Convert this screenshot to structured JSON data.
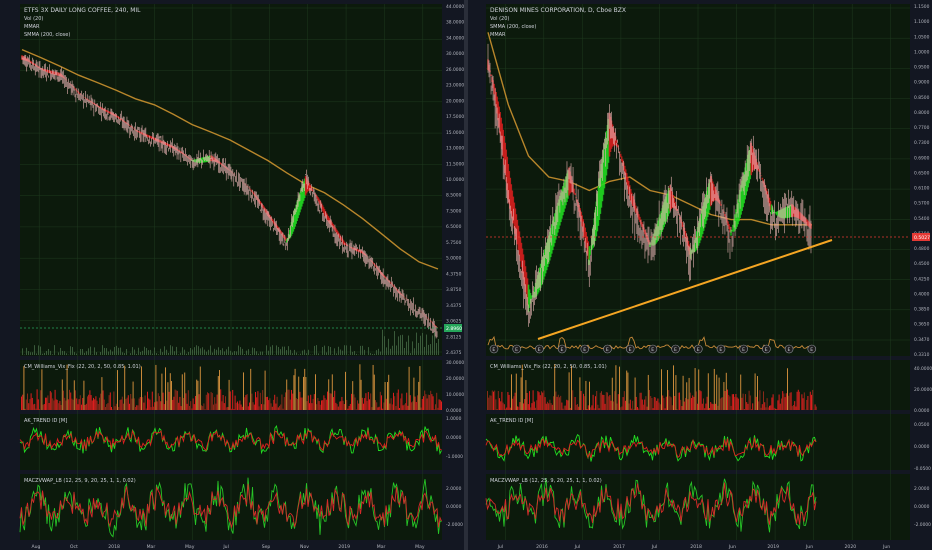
{
  "colors": {
    "bg": "#131722",
    "panel_bg": "#0c1a0c",
    "grid": "#1f3a1f",
    "divider": "#3a3f4b",
    "axis_text": "#b2b5be",
    "legend_text": "#d1d4dc",
    "up": "#22dd22",
    "down": "#dd1f1f",
    "smma": "#b8862b",
    "trendline": "#f5a623",
    "vol_orange": "#c98a3a",
    "macd_green": "#27c427",
    "macd_red": "#d42a2a",
    "last_price_green": "#26a65b",
    "last_price_red": "#e53935"
  },
  "left": {
    "legend": [
      "ETFS 3X DAILY LONG COFFEE, 240, MIL",
      "Vol (20)",
      "MMAR",
      "SMMA (200, close)"
    ],
    "price_ticks": [
      "44.0000",
      "38.0000",
      "34.0000",
      "30.0000",
      "26.0000",
      "23.0000",
      "20.0000",
      "17.5000",
      "15.0000",
      "13.0000",
      "11.5000",
      "10.0000",
      "8.5000",
      "7.5000",
      "6.5000",
      "5.7500",
      "5.0000",
      "4.3750",
      "3.8750",
      "3.4375",
      "3.0625",
      "2.8125",
      "2.4375"
    ],
    "last_price": "2.8960",
    "x_ticks": [
      "Aug",
      "Oct",
      "2018",
      "Mar",
      "May",
      "Jul",
      "Sep",
      "Nov",
      "2019",
      "Mar",
      "May"
    ],
    "indicators": [
      {
        "label": "CM_Williams_Vix_Fix (22, 20, 2, 50, 0.85, 1.01)",
        "ticks": [
          "30.0000",
          "20.0000",
          "10.0000",
          "0.0000"
        ]
      },
      {
        "label": "AK_TREND ID [M]",
        "ticks": [
          "1.0000",
          "0.0000",
          "-1.0000"
        ]
      },
      {
        "label": "MACZVWAP_LB (12, 25, 9, 20, 25, 1, 1, 0.02)",
        "ticks": [
          "2.0000",
          "0.0000",
          "-2.0000"
        ]
      }
    ]
  },
  "right": {
    "legend": [
      "DENISON MINES CORPORATION, D, Cboe BZX",
      "Vol (20)",
      "SMMA (200, close)",
      "MMAR"
    ],
    "price_ticks": [
      "1.1500",
      "1.1000",
      "1.0500",
      "1.0000",
      "0.9500",
      "0.9000",
      "0.8500",
      "0.8000",
      "0.7700",
      "0.7300",
      "0.6900",
      "0.6500",
      "0.6100",
      "0.5700",
      "0.5400",
      "0.5100",
      "0.4800",
      "0.4500",
      "0.4250",
      "0.4000",
      "0.3850",
      "0.3650",
      "0.3470",
      "0.3310"
    ],
    "last_price": "0.5027",
    "x_ticks": [
      "Jul",
      "2016",
      "Jul",
      "2017",
      "Jul",
      "2018",
      "Jun",
      "2019",
      "Jun",
      "2020",
      "Jun"
    ],
    "event_markers": [
      "E",
      "E",
      "E",
      "E",
      "E",
      "E",
      "E",
      "E",
      "E",
      "E",
      "E",
      "E",
      "E",
      "E",
      "E"
    ],
    "indicators": [
      {
        "label": "CM_Williams_Vix_Fix (22, 20, 2, 50, 0.85, 1.01)",
        "ticks": [
          "40.0000",
          "20.0000",
          "0.0000"
        ]
      },
      {
        "label": "AK_TREND ID [M]",
        "ticks": [
          "0.0500",
          "0.0000",
          "-0.0500"
        ]
      },
      {
        "label": "MACZVWAP_LB (12, 25, 9, 20, 25, 1, 1, 0.02)",
        "ticks": [
          "2.0000",
          "0.0000",
          "-2.0000"
        ]
      }
    ]
  },
  "chart_data": [
    {
      "type": "line",
      "title": "ETFS 3X DAILY LONG COFFEE, 240, MIL",
      "x": [
        "Jul-2017",
        "Aug-2017",
        "Sep-2017",
        "Oct-2017",
        "Nov-2017",
        "Dec-2017",
        "Jan-2018",
        "Feb-2018",
        "Mar-2018",
        "Apr-2018",
        "May-2018",
        "Jun-2018",
        "Jul-2018",
        "Aug-2018",
        "Sep-2018",
        "Oct-2018",
        "Nov-2018",
        "Dec-2018",
        "Jan-2019",
        "Feb-2019",
        "Mar-2019",
        "Apr-2019",
        "May-2019"
      ],
      "series": [
        {
          "values": [
            29,
            26,
            25,
            21,
            19,
            17.5,
            15.5,
            14.5,
            13.5,
            12,
            12.5,
            11,
            9.5,
            7.5,
            6.0,
            10.5,
            7.5,
            5.9,
            5.6,
            4.6,
            3.9,
            3.4,
            2.9
          ]
        },
        {
          "values": [
            31,
            29,
            27,
            25,
            23.5,
            22,
            20.5,
            19.5,
            18,
            16.5,
            15.5,
            14.5,
            13.3,
            12.2,
            11.0,
            10.0,
            9.3,
            8.4,
            7.5,
            6.6,
            5.8,
            5.2,
            4.9
          ]
        }
      ],
      "ylim": [
        2.4375,
        44
      ]
    },
    {
      "type": "line",
      "title": "DENISON MINES CORPORATION, D, Cboe BZX",
      "x": [
        "Jul-2015",
        "Oct-2015",
        "Jan-2016",
        "Apr-2016",
        "Jul-2016",
        "Oct-2016",
        "Jan-2017",
        "Apr-2017",
        "Jul-2017",
        "Oct-2017",
        "Jan-2018",
        "Apr-2018",
        "Jul-2018",
        "Oct-2018",
        "Jan-2019",
        "Apr-2019",
        "May-2019"
      ],
      "series": [
        {
          "values": [
            0.93,
            0.55,
            0.36,
            0.48,
            0.62,
            0.43,
            0.76,
            0.55,
            0.46,
            0.58,
            0.44,
            0.6,
            0.48,
            0.68,
            0.52,
            0.54,
            0.5
          ]
        },
        {
          "values": [
            1.05,
            0.8,
            0.66,
            0.61,
            0.6,
            0.58,
            0.6,
            0.61,
            0.58,
            0.57,
            0.55,
            0.53,
            0.52,
            0.52,
            0.51,
            0.51,
            0.51
          ]
        }
      ],
      "ylim": [
        0.331,
        1.15
      ]
    }
  ]
}
